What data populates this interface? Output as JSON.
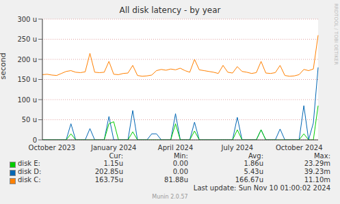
{
  "chart_data": {
    "type": "line",
    "title": "All disk latency - by year",
    "y_label": "second",
    "categories": [
      null,
      null,
      "October 2023",
      null,
      null,
      null,
      null,
      null,
      null,
      null,
      null,
      null,
      null,
      null,
      null,
      "January 2024",
      null,
      null,
      null,
      null,
      null,
      null,
      null,
      null,
      null,
      null,
      null,
      null,
      "April 2024",
      null,
      null,
      null,
      null,
      null,
      null,
      null,
      null,
      null,
      null,
      null,
      null,
      "July 2024",
      null,
      null,
      null,
      null,
      null,
      null,
      null,
      null,
      null,
      null,
      null,
      null,
      "October 2024",
      null,
      null,
      null,
      null
    ],
    "series": [
      {
        "name": "disk E:",
        "color": "#00cc00",
        "values": [
          0,
          0,
          0,
          0,
          0,
          0,
          15,
          0,
          0,
          0,
          0,
          0,
          0,
          0,
          40,
          45,
          0,
          0,
          0,
          20,
          0,
          0,
          0,
          0,
          0,
          0,
          0,
          0,
          40,
          0,
          0,
          0,
          22,
          0,
          0,
          0,
          0,
          0,
          0,
          0,
          0,
          25,
          0,
          0,
          0,
          0,
          25,
          0,
          0,
          0,
          0,
          0,
          0,
          0,
          0,
          15,
          0,
          0,
          85
        ]
      },
      {
        "name": "disk D:",
        "color": "#0066b3",
        "values": [
          0,
          0,
          0,
          0,
          0,
          0,
          40,
          0,
          0,
          0,
          28,
          0,
          0,
          0,
          58,
          0,
          0,
          0,
          0,
          73,
          0,
          0,
          0,
          15,
          15,
          0,
          0,
          0,
          65,
          0,
          0,
          0,
          44,
          0,
          0,
          0,
          0,
          0,
          0,
          0,
          0,
          56,
          0,
          0,
          0,
          0,
          25,
          0,
          0,
          0,
          27,
          0,
          0,
          0,
          0,
          85,
          0,
          42,
          180
        ]
      },
      {
        "name": "disk C:",
        "color": "#ff8000",
        "values": [
          162,
          163,
          161,
          160,
          165,
          170,
          172,
          168,
          167,
          169,
          215,
          168,
          167,
          168,
          195,
          163,
          162,
          165,
          166,
          185,
          160,
          158,
          159,
          161,
          172,
          175,
          173,
          176,
          174,
          178,
          172,
          168,
          200,
          174,
          172,
          170,
          168,
          165,
          185,
          168,
          166,
          182,
          170,
          168,
          165,
          167,
          195,
          166,
          165,
          167,
          185,
          160,
          158,
          159,
          162,
          175,
          172,
          176,
          260
        ]
      }
    ],
    "ylim": [
      0,
      300
    ],
    "yticks": [
      0,
      {
        "value": 50,
        "label": "50 u"
      },
      {
        "value": 100,
        "label": "100 u"
      },
      {
        "value": 150,
        "label": "150 u"
      },
      {
        "value": 200,
        "label": "200 u"
      },
      {
        "value": 250,
        "label": "250 u"
      },
      {
        "value": 300,
        "label": "300 u"
      }
    ],
    "grid": true,
    "legend_table": {
      "columns": [
        "Cur:",
        "Min:",
        "Avg:",
        "Max:"
      ],
      "rows": [
        [
          "1.15u",
          "0.00",
          "1.86u",
          "23.29m"
        ],
        [
          "202.85u",
          "0.00",
          "5.43u",
          "39.23m"
        ],
        [
          "163.75u",
          "81.88u",
          "166.67u",
          "11.10m"
        ]
      ]
    },
    "footer": "Last update: Sun Nov 10 01:00:02 2024",
    "credit": "Munin 2.0.57",
    "watermark": "RRDTOOL / TOBI OETIKER"
  }
}
